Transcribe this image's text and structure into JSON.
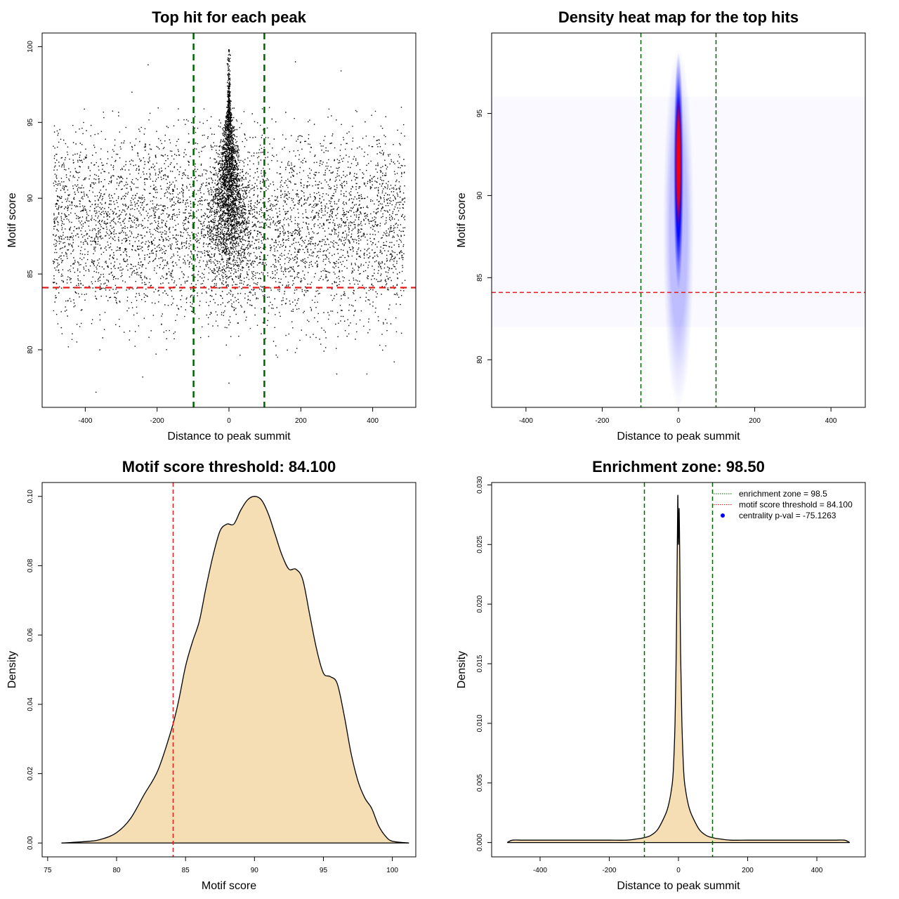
{
  "colors": {
    "vline": "#006400",
    "hline": "#e41a1c",
    "density_fill": "#f5deb3",
    "points": "#000000",
    "heat_low": "#ffffff",
    "heat_mid": "#0000ff",
    "heat_high": "#ff0000",
    "legend_dot": "#0000ff"
  },
  "chart_data": [
    {
      "id": "tl",
      "type": "scatter",
      "title": "Top hit for each peak",
      "xlabel": "Distance to peak summit",
      "ylabel": "Motif score",
      "xlim": [
        -520,
        520
      ],
      "ylim": [
        76.2,
        100.9
      ],
      "xticks": [
        -400,
        -200,
        0,
        200,
        400
      ],
      "yticks": [
        80,
        85,
        90,
        95,
        100
      ],
      "vlines": [
        -98.5,
        98.5
      ],
      "hline": 84.1,
      "point_summary": "Approximately 20000 top-hit points; x spans -490 to 490, y spans ~77 to ~100; dense vertical band at x≈0 (scores 82–100), sparser uniform background between scores ~80 and ~96.",
      "sample_points": [
        {
          "x": -370,
          "y": 77.2
        },
        {
          "x": -240,
          "y": 78.2
        },
        {
          "x": 0,
          "y": 77.8
        },
        {
          "x": 300,
          "y": 78.4
        },
        {
          "x": 384,
          "y": 78.4
        },
        {
          "x": -270,
          "y": 97.0
        },
        {
          "x": -225,
          "y": 98.8
        },
        {
          "x": 185,
          "y": 99.0
        },
        {
          "x": 312,
          "y": 98.4
        },
        {
          "x": 460,
          "y": 79.2
        },
        {
          "x": 480,
          "y": 96.0
        },
        {
          "x": 0,
          "y": 99.8
        }
      ]
    },
    {
      "id": "tr",
      "type": "heatmap",
      "title": "Density heat map for the top hits",
      "xlabel": "Distance to peak summit",
      "ylabel": "Motif score",
      "xlim": [
        -490,
        490
      ],
      "ylim": [
        77.1,
        99.9
      ],
      "xticks": [
        -400,
        -200,
        0,
        200,
        400
      ],
      "yticks": [
        80,
        85,
        90,
        95
      ],
      "vlines": [
        -98.5,
        98.5
      ],
      "hline": 84.1,
      "hotspot": {
        "x": 0,
        "y": 92,
        "x_sd": 6,
        "y_sd": 3.5
      }
    },
    {
      "id": "bl",
      "type": "area",
      "title": "Motif score threshold: 84.100",
      "xlabel": "Motif score",
      "ylabel": "Density",
      "xlim": [
        74.6,
        101.7
      ],
      "ylim": [
        -0.004,
        0.104
      ],
      "xticks": [
        75,
        80,
        85,
        90,
        95,
        100
      ],
      "yticks": [
        0.0,
        0.02,
        0.04,
        0.06,
        0.08,
        0.1
      ],
      "ytick_labels": [
        "0.00",
        "0.02",
        "0.04",
        "0.06",
        "0.08",
        "0.10"
      ],
      "vline": 84.1,
      "x": [
        76,
        78,
        79,
        80,
        81,
        82,
        83,
        84,
        84.5,
        85,
        85.5,
        86,
        86.5,
        87,
        87.5,
        88,
        88.5,
        89,
        89.5,
        90,
        90.5,
        91,
        91.5,
        92,
        92.5,
        93,
        93.5,
        94,
        94.5,
        95,
        95.5,
        96,
        96.5,
        97,
        97.5,
        98,
        98.5,
        99,
        99.5,
        100,
        101.2
      ],
      "y": [
        0.0,
        0.0005,
        0.0012,
        0.003,
        0.007,
        0.014,
        0.021,
        0.033,
        0.041,
        0.051,
        0.058,
        0.064,
        0.074,
        0.083,
        0.09,
        0.092,
        0.092,
        0.096,
        0.099,
        0.1,
        0.099,
        0.095,
        0.089,
        0.083,
        0.079,
        0.079,
        0.076,
        0.066,
        0.056,
        0.049,
        0.048,
        0.046,
        0.037,
        0.026,
        0.018,
        0.013,
        0.01,
        0.005,
        0.002,
        0.0005,
        0.0
      ]
    },
    {
      "id": "br",
      "type": "area",
      "title": "Enrichment zone: 98.50",
      "xlabel": "Distance to peak summit",
      "ylabel": "Density",
      "xlim": [
        -540,
        540
      ],
      "ylim": [
        -0.0012,
        0.0302
      ],
      "xticks": [
        -400,
        -200,
        0,
        200,
        400
      ],
      "yticks": [
        0.0,
        0.005,
        0.01,
        0.015,
        0.02,
        0.025,
        0.03
      ],
      "ytick_labels": [
        "0.000",
        "0.005",
        "0.010",
        "0.015",
        "0.020",
        "0.025",
        "0.030"
      ],
      "vlines": [
        -98.5,
        98.5
      ],
      "x": [
        -495,
        -480,
        -450,
        -400,
        -350,
        -300,
        -250,
        -200,
        -150,
        -120,
        -100,
        -80,
        -60,
        -40,
        -30,
        -20,
        -15,
        -10,
        -6,
        -4,
        -2,
        -1,
        0,
        1,
        2,
        3,
        4,
        6,
        10,
        15,
        20,
        30,
        40,
        60,
        80,
        100,
        120,
        150,
        200,
        250,
        300,
        350,
        400,
        450,
        480,
        495
      ],
      "y": [
        0.0,
        0.0002,
        0.0002,
        0.0002,
        0.0002,
        0.0002,
        0.0002,
        0.0002,
        0.0002,
        0.0003,
        0.0004,
        0.0006,
        0.0011,
        0.0022,
        0.003,
        0.0045,
        0.006,
        0.01,
        0.017,
        0.023,
        0.029,
        0.027,
        0.025,
        0.027,
        0.028,
        0.026,
        0.023,
        0.016,
        0.01,
        0.006,
        0.0045,
        0.003,
        0.0022,
        0.0011,
        0.0006,
        0.0004,
        0.0003,
        0.0002,
        0.0002,
        0.0002,
        0.0002,
        0.0002,
        0.0002,
        0.0002,
        0.0002,
        0.0
      ],
      "legend": {
        "position": "top-right",
        "items": [
          {
            "label": "enrichment zone = 98.5",
            "kind": "dotted-line",
            "color": "#006400"
          },
          {
            "label": "motif score threshold = 84.100",
            "kind": "dotted-line",
            "color": "#e41a1c"
          },
          {
            "label": "centrality p-val = -75.1263",
            "kind": "dot",
            "color": "#0000ff"
          }
        ]
      }
    }
  ]
}
